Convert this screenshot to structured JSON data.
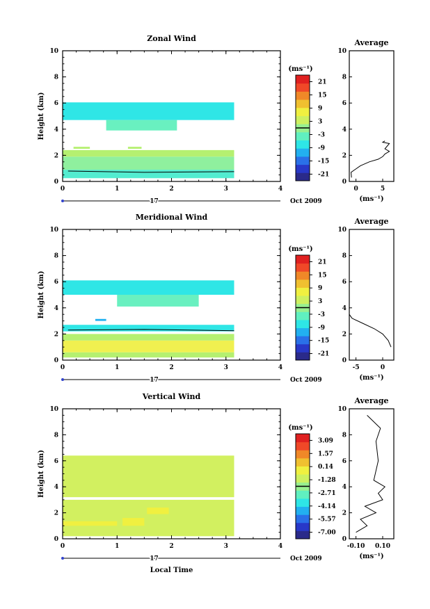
{
  "chart_data": [
    {
      "type": "heatmap",
      "title": "Zonal Wind",
      "ylabel": "Height (km)",
      "xlim": [
        0,
        4
      ],
      "ylim": [
        0,
        10
      ],
      "xticks": [
        "0",
        "1",
        "2",
        "3",
        "4"
      ],
      "yticks": [
        "0",
        "2",
        "4",
        "6",
        "8",
        "10"
      ],
      "date_day": "17",
      "date_label": "Oct 2009",
      "colorbar": {
        "unit": "(ms⁻¹)",
        "min": -24,
        "max": 24,
        "contour_at": 0,
        "ticks": [
          "21",
          "15",
          "9",
          "3",
          "-3",
          "-9",
          "-15",
          "-21"
        ]
      },
      "bands": [
        {
          "x0": 0.0,
          "x1": 3.15,
          "y0": 0.25,
          "y1": 0.9,
          "color": "#53ecd0"
        },
        {
          "x0": 0.0,
          "x1": 3.15,
          "y0": 0.9,
          "y1": 1.9,
          "color": "#8ff09e"
        },
        {
          "x0": 0.0,
          "x1": 3.15,
          "y0": 1.9,
          "y1": 2.4,
          "color": "#b5f070"
        },
        {
          "x0": 0.2,
          "x1": 0.5,
          "y0": 2.5,
          "y1": 2.65,
          "color": "#b5f070"
        },
        {
          "x0": 1.2,
          "x1": 1.45,
          "y0": 2.5,
          "y1": 2.65,
          "color": "#b5f070"
        },
        {
          "x0": 0.0,
          "x1": 3.15,
          "y0": 4.7,
          "y1": 6.05,
          "color": "#2fe6e6"
        },
        {
          "x0": 0.8,
          "x1": 2.1,
          "y0": 3.9,
          "y1": 4.7,
          "color": "#69f0c0"
        }
      ],
      "contours": [
        [
          0.1,
          0.8
        ],
        [
          1.5,
          0.7
        ],
        [
          3.15,
          0.75
        ]
      ],
      "profile": {
        "title": "Average",
        "xlabel": "(ms⁻¹)",
        "xlim": [
          -2,
          8
        ],
        "xticks": [
          "0",
          "5"
        ],
        "ylim": [
          0,
          10
        ],
        "x": [
          -1.5,
          -1.6,
          0.5,
          2.5,
          4.5,
          5.5,
          6.0,
          7.0,
          6.0,
          6.5,
          7.0,
          5.5,
          6.0
        ],
        "y": [
          0.3,
          0.7,
          1.2,
          1.5,
          1.7,
          1.9,
          2.1,
          2.3,
          2.5,
          2.7,
          2.9,
          3.0,
          3.1
        ]
      }
    },
    {
      "type": "heatmap",
      "title": "Meridional Wind",
      "ylabel": "Height (km)",
      "xlim": [
        0,
        4
      ],
      "ylim": [
        0,
        10
      ],
      "xticks": [
        "0",
        "1",
        "2",
        "3",
        "4"
      ],
      "yticks": [
        "0",
        "2",
        "4",
        "6",
        "8",
        "10"
      ],
      "date_day": "17",
      "date_label": "Oct 2009",
      "colorbar": {
        "unit": "(ms⁻¹)",
        "min": -24,
        "max": 24,
        "contour_at": 0,
        "ticks": [
          "21",
          "15",
          "9",
          "3",
          "-3",
          "-9",
          "-15",
          "-21"
        ]
      },
      "bands": [
        {
          "x0": 0.0,
          "x1": 3.15,
          "y0": 0.2,
          "y1": 0.6,
          "color": "#b5f070"
        },
        {
          "x0": 0.0,
          "x1": 3.15,
          "y0": 0.6,
          "y1": 1.5,
          "color": "#f0f050"
        },
        {
          "x0": 0.0,
          "x1": 3.15,
          "y0": 1.5,
          "y1": 2.0,
          "color": "#b5f070"
        },
        {
          "x0": 0.0,
          "x1": 3.15,
          "y0": 2.2,
          "y1": 2.7,
          "color": "#2fe6e6"
        },
        {
          "x0": 0.6,
          "x1": 0.8,
          "y0": 3.0,
          "y1": 3.15,
          "color": "#1fb0f0"
        },
        {
          "x0": 0.0,
          "x1": 3.15,
          "y0": 5.0,
          "y1": 6.1,
          "color": "#2fe6e6"
        },
        {
          "x0": 1.0,
          "x1": 2.5,
          "y0": 4.1,
          "y1": 5.0,
          "color": "#69f0c0"
        }
      ],
      "contours": [
        [
          0.1,
          2.3
        ],
        [
          1.5,
          2.35
        ],
        [
          3.15,
          2.25
        ]
      ],
      "profile": {
        "title": "Average",
        "xlabel": "(ms⁻¹)",
        "xlim": [
          -5,
          3
        ],
        "xticks": [
          "-5",
          "0"
        ],
        "ylim": [
          0,
          10
        ],
        "x": [
          2.5,
          2.0,
          1.0,
          -0.5,
          -2.5,
          -4.5,
          -5.0
        ],
        "y": [
          1.0,
          1.5,
          2.0,
          2.4,
          2.8,
          3.2,
          3.5
        ]
      }
    },
    {
      "type": "heatmap",
      "title": "Vertical Wind",
      "xlabel": "Local Time",
      "ylabel": "Height (km)",
      "xlim": [
        0,
        4
      ],
      "ylim": [
        0,
        10
      ],
      "xticks": [
        "0",
        "1",
        "2",
        "3",
        "4"
      ],
      "yticks": [
        "0",
        "2",
        "4",
        "6",
        "8",
        "10"
      ],
      "date_day": "17",
      "date_label": "Oct 2009",
      "colorbar": {
        "unit": "(ms⁻¹)",
        "min": -7.8,
        "max": 3.8,
        "contour_at": -2.0,
        "ticks": [
          "3.09",
          "1.57",
          "0.14",
          "-1.28",
          "-2.71",
          "-4.14",
          "-5.57",
          "-7.00"
        ]
      },
      "bands": [
        {
          "x0": 0.0,
          "x1": 3.15,
          "y0": 0.2,
          "y1": 3.0,
          "color": "#d2f060"
        },
        {
          "x0": 0.0,
          "x1": 3.15,
          "y0": 3.2,
          "y1": 6.4,
          "color": "#d2f060"
        },
        {
          "x0": 0.0,
          "x1": 1.0,
          "y0": 1.0,
          "y1": 1.35,
          "color": "#f0f040"
        },
        {
          "x0": 1.1,
          "x1": 1.5,
          "y0": 1.0,
          "y1": 1.6,
          "color": "#f0f040"
        },
        {
          "x0": 1.55,
          "x1": 1.95,
          "y0": 1.9,
          "y1": 2.4,
          "color": "#f0f040"
        }
      ],
      "contours": [],
      "profile": {
        "title": "Average",
        "xlabel": "(ms⁻¹)",
        "xlim": [
          -0.1,
          0.1
        ],
        "xticks": [
          "-0.10",
          "0.10"
        ],
        "ylim": [
          0,
          10
        ],
        "x": [
          -0.07,
          -0.02,
          -0.05,
          0.02,
          -0.03,
          0.05,
          0.03,
          0.06,
          0.01,
          0.03,
          0.02,
          0.04,
          -0.02
        ],
        "y": [
          0.5,
          1.0,
          1.5,
          2.0,
          2.5,
          3.0,
          3.5,
          4.0,
          4.5,
          6.0,
          7.5,
          8.5,
          9.5
        ]
      }
    }
  ]
}
